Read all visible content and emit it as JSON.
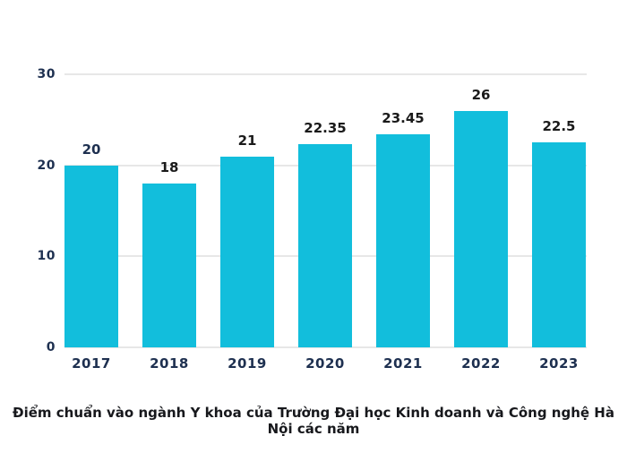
{
  "chart_data": {
    "type": "bar",
    "categories": [
      "2017",
      "2018",
      "2019",
      "2020",
      "2021",
      "2022",
      "2023"
    ],
    "values": [
      20,
      18,
      21,
      22.35,
      23.45,
      26,
      22.5
    ],
    "value_labels": [
      "20",
      "18",
      "21",
      "22.35",
      "23.45",
      "26",
      "22.5"
    ],
    "title": "",
    "xlabel": "",
    "ylabel": "",
    "caption": "Điểm chuẩn vào ngành Y khoa của Trường Đại học Kinh doanh và Công nghệ Hà Nội các năm",
    "ylim": [
      0,
      30
    ],
    "yticks": [
      0,
      10,
      20,
      30
    ],
    "grid": true,
    "legend": "none",
    "colors": {
      "bar": "#12BEDC",
      "axis_label": "#1E3050",
      "value_label": "#1A1A1A",
      "first_value_label": "#1E3050",
      "gridline": "#E7E7E7",
      "caption": "#17181C",
      "background": "#FFFFFF"
    }
  }
}
